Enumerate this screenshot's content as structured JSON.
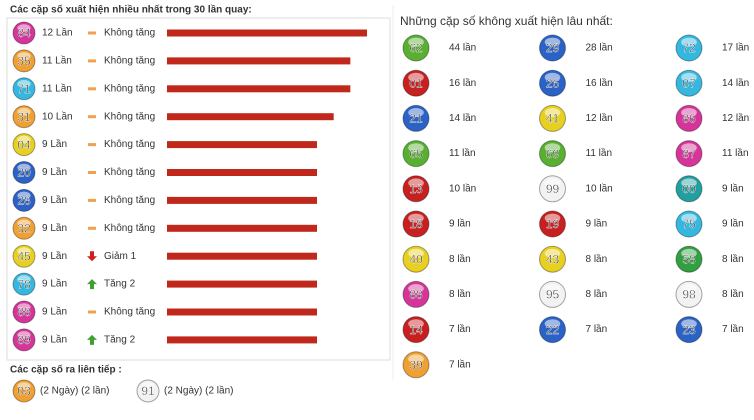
{
  "left": {
    "title": "Các cặp số xuất hiện nhiều nhất trong 30 lần quay:",
    "bar_color": "#c0281b",
    "rows": [
      {
        "number": "84",
        "color": "#d6349a",
        "count": 12,
        "count_label": "12 Lần",
        "trend": "none",
        "trend_label": "Không tăng"
      },
      {
        "number": "35",
        "color": "#f0a030",
        "count": 11,
        "count_label": "11 Lần",
        "trend": "none",
        "trend_label": "Không tăng"
      },
      {
        "number": "71",
        "color": "#35b8e0",
        "count": 11,
        "count_label": "11 Lần",
        "trend": "none",
        "trend_label": "Không tăng"
      },
      {
        "number": "31",
        "color": "#f0a030",
        "count": 10,
        "count_label": "10 Lần",
        "trend": "none",
        "trend_label": "Không tăng"
      },
      {
        "number": "04",
        "color": "#e8d020",
        "count": 9,
        "count_label": "9 Lần",
        "trend": "none",
        "trend_label": "Không tăng"
      },
      {
        "number": "20",
        "color": "#2a62c8",
        "count": 9,
        "count_label": "9 Lần",
        "trend": "none",
        "trend_label": "Không tăng"
      },
      {
        "number": "28",
        "color": "#2a62c8",
        "count": 9,
        "count_label": "9 Lần",
        "trend": "none",
        "trend_label": "Không tăng"
      },
      {
        "number": "32",
        "color": "#f0a030",
        "count": 9,
        "count_label": "9 Lần",
        "trend": "none",
        "trend_label": "Không tăng"
      },
      {
        "number": "45",
        "color": "#e8d020",
        "count": 9,
        "count_label": "9 Lần",
        "trend": "down",
        "trend_label": "Giảm 1"
      },
      {
        "number": "78",
        "color": "#35b8e0",
        "count": 9,
        "count_label": "9 Lần",
        "trend": "up",
        "trend_label": "Tăng 2"
      },
      {
        "number": "88",
        "color": "#d6349a",
        "count": 9,
        "count_label": "9 Lần",
        "trend": "none",
        "trend_label": "Không tăng"
      },
      {
        "number": "89",
        "color": "#d6349a",
        "count": 9,
        "count_label": "9 Lần",
        "trend": "up",
        "trend_label": "Tăng 2"
      }
    ]
  },
  "consecutive": {
    "title": "Các cặp số ra liên tiếp :",
    "items": [
      {
        "number": "03",
        "color": "#f0a030",
        "label": "(2 Ngày) (2 lần)"
      },
      {
        "number": "91",
        "color": "#f2f2f2",
        "label": "(2 Ngày) (2 lần)"
      }
    ]
  },
  "right": {
    "title": "Những cặp số không xuất hiện lâu nhất:",
    "columns": 3,
    "items": [
      {
        "number": "62",
        "color": "#58b030",
        "label": "44 lần"
      },
      {
        "number": "29",
        "color": "#2a62c8",
        "label": "28 lần"
      },
      {
        "number": "72",
        "color": "#35b8e0",
        "label": "17 lần"
      },
      {
        "number": "01",
        "color": "#c82020",
        "label": "16 lần"
      },
      {
        "number": "26",
        "color": "#2a62c8",
        "label": "16 lần"
      },
      {
        "number": "07",
        "color": "#35b8e0",
        "label": "14 lần"
      },
      {
        "number": "21",
        "color": "#2a62c8",
        "label": "14 lần"
      },
      {
        "number": "41",
        "color": "#e8d020",
        "label": "12 lần"
      },
      {
        "number": "86",
        "color": "#d6349a",
        "label": "12 lần"
      },
      {
        "number": "65",
        "color": "#58b030",
        "label": "11 lần"
      },
      {
        "number": "69",
        "color": "#58b030",
        "label": "11 lần"
      },
      {
        "number": "87",
        "color": "#d6349a",
        "label": "11 lần"
      },
      {
        "number": "13",
        "color": "#c82020",
        "label": "10 lần"
      },
      {
        "number": "99",
        "color": "#f2f2f2",
        "label": "10 lần"
      },
      {
        "number": "00",
        "color": "#20a0a0",
        "label": "9 lần"
      },
      {
        "number": "18",
        "color": "#c82020",
        "label": "9 lần"
      },
      {
        "number": "19",
        "color": "#c82020",
        "label": "9 lần"
      },
      {
        "number": "75",
        "color": "#35b8e0",
        "label": "9 lần"
      },
      {
        "number": "40",
        "color": "#e8d020",
        "label": "8 lần"
      },
      {
        "number": "43",
        "color": "#e8d020",
        "label": "8 lần"
      },
      {
        "number": "58",
        "color": "#30a040",
        "label": "8 lần"
      },
      {
        "number": "88",
        "color": "#d6349a",
        "label": "8 lần"
      },
      {
        "number": "95",
        "color": "#f2f2f2",
        "label": "8 lần"
      },
      {
        "number": "98",
        "color": "#f2f2f2",
        "label": "8 lần"
      },
      {
        "number": "14",
        "color": "#c82020",
        "label": "7 lần"
      },
      {
        "number": "22",
        "color": "#2a62c8",
        "label": "7 lần"
      },
      {
        "number": "23",
        "color": "#2a62c8",
        "label": "7 lần"
      },
      {
        "number": "39",
        "color": "#f0a030",
        "label": "7 lần"
      }
    ]
  }
}
